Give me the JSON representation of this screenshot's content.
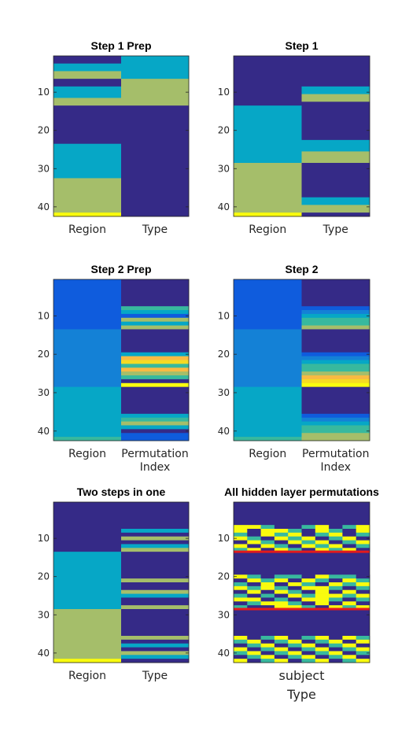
{
  "palette": {
    "navy": "#352a87",
    "blue": "#0f5cdd",
    "midblue": "#1481d6",
    "cyan": "#06a7c6",
    "teal": "#38b99e",
    "green": "#a5be6a",
    "orange": "#f8ba43",
    "yellow": "#f6da23",
    "brightyellow": "#f9fb0e",
    "red": "#e41a1c"
  },
  "chart_data": [
    {
      "type": "heatmap",
      "title": "Step 1 Prep",
      "columns": [
        "Region",
        "Type"
      ],
      "ylim": [
        1,
        42
      ],
      "yticks": [
        10,
        20,
        30,
        40
      ],
      "col_segments": [
        [
          [
            1,
            2,
            "navy"
          ],
          [
            3,
            4,
            "cyan"
          ],
          [
            5,
            6,
            "green"
          ],
          [
            7,
            8,
            "navy"
          ],
          [
            9,
            11,
            "cyan"
          ],
          [
            12,
            13,
            "green"
          ],
          [
            14,
            23,
            "navy"
          ],
          [
            24,
            32,
            "cyan"
          ],
          [
            33,
            41,
            "green"
          ],
          [
            42,
            42,
            "brightyellow"
          ]
        ],
        [
          [
            1,
            6,
            "cyan"
          ],
          [
            7,
            13,
            "green"
          ],
          [
            14,
            42,
            "navy"
          ]
        ]
      ]
    },
    {
      "type": "heatmap",
      "title": "Step 1",
      "columns": [
        "Region",
        "Type"
      ],
      "ylim": [
        1,
        42
      ],
      "yticks": [
        10,
        20,
        30,
        40
      ],
      "col_segments": [
        [
          [
            1,
            13,
            "navy"
          ],
          [
            14,
            28,
            "cyan"
          ],
          [
            29,
            41,
            "green"
          ],
          [
            42,
            42,
            "brightyellow"
          ]
        ],
        [
          [
            1,
            8,
            "navy"
          ],
          [
            9,
            10,
            "cyan"
          ],
          [
            11,
            12,
            "green"
          ],
          [
            13,
            22,
            "navy"
          ],
          [
            23,
            25,
            "cyan"
          ],
          [
            26,
            28,
            "green"
          ],
          [
            29,
            37,
            "navy"
          ],
          [
            38,
            39,
            "cyan"
          ],
          [
            40,
            41,
            "green"
          ],
          [
            42,
            42,
            "navy"
          ]
        ]
      ]
    },
    {
      "type": "heatmap",
      "title": "Step 2 Prep",
      "columns": [
        "Region",
        "Permutation Index"
      ],
      "ylim": [
        1,
        42
      ],
      "yticks": [
        10,
        20,
        30,
        40
      ],
      "col_segments": [
        [
          [
            1,
            13,
            "blue"
          ],
          [
            14,
            28,
            "midblue"
          ],
          [
            29,
            41,
            "cyan"
          ],
          [
            42,
            42,
            "teal"
          ]
        ],
        [
          [
            1,
            7,
            "navy"
          ],
          [
            8,
            8,
            "teal"
          ],
          [
            9,
            9,
            "cyan"
          ],
          [
            10,
            10,
            "blue"
          ],
          [
            11,
            11,
            "green"
          ],
          [
            12,
            12,
            "cyan"
          ],
          [
            13,
            13,
            "green"
          ],
          [
            14,
            19,
            "navy"
          ],
          [
            20,
            20,
            "cyan"
          ],
          [
            21,
            21,
            "orange"
          ],
          [
            22,
            22,
            "yellow"
          ],
          [
            23,
            23,
            "teal"
          ],
          [
            24,
            24,
            "orange"
          ],
          [
            25,
            25,
            "green"
          ],
          [
            26,
            26,
            "teal"
          ],
          [
            27,
            27,
            "navy"
          ],
          [
            28,
            28,
            "brightyellow"
          ],
          [
            29,
            35,
            "navy"
          ],
          [
            36,
            36,
            "cyan"
          ],
          [
            37,
            37,
            "teal"
          ],
          [
            38,
            38,
            "green"
          ],
          [
            39,
            39,
            "cyan"
          ],
          [
            40,
            40,
            "navy"
          ],
          [
            41,
            42,
            "blue"
          ]
        ]
      ]
    },
    {
      "type": "heatmap",
      "title": "Step 2",
      "columns": [
        "Region",
        "Permutation Index"
      ],
      "ylim": [
        1,
        42
      ],
      "yticks": [
        10,
        20,
        30,
        40
      ],
      "col_segments": [
        [
          [
            1,
            13,
            "blue"
          ],
          [
            14,
            28,
            "midblue"
          ],
          [
            29,
            41,
            "cyan"
          ],
          [
            42,
            42,
            "teal"
          ]
        ],
        [
          [
            1,
            7,
            "navy"
          ],
          [
            8,
            8,
            "blue"
          ],
          [
            9,
            9,
            "midblue"
          ],
          [
            10,
            10,
            "cyan"
          ],
          [
            11,
            11,
            "teal"
          ],
          [
            12,
            12,
            "teal"
          ],
          [
            13,
            13,
            "green"
          ],
          [
            14,
            19,
            "navy"
          ],
          [
            20,
            20,
            "blue"
          ],
          [
            21,
            21,
            "midblue"
          ],
          [
            22,
            22,
            "cyan"
          ],
          [
            23,
            23,
            "teal"
          ],
          [
            24,
            24,
            "teal"
          ],
          [
            25,
            25,
            "green"
          ],
          [
            26,
            26,
            "orange"
          ],
          [
            27,
            27,
            "yellow"
          ],
          [
            28,
            28,
            "brightyellow"
          ],
          [
            29,
            35,
            "navy"
          ],
          [
            36,
            36,
            "blue"
          ],
          [
            37,
            37,
            "midblue"
          ],
          [
            38,
            38,
            "cyan"
          ],
          [
            39,
            39,
            "teal"
          ],
          [
            40,
            40,
            "teal"
          ],
          [
            41,
            41,
            "green"
          ],
          [
            42,
            42,
            "green"
          ]
        ]
      ]
    },
    {
      "type": "heatmap",
      "title": "Two steps in one",
      "columns": [
        "Region",
        "Type"
      ],
      "ylim": [
        1,
        42
      ],
      "yticks": [
        10,
        20,
        30,
        40
      ],
      "col_segments": [
        [
          [
            1,
            13,
            "navy"
          ],
          [
            14,
            28,
            "cyan"
          ],
          [
            29,
            41,
            "green"
          ],
          [
            42,
            42,
            "brightyellow"
          ]
        ],
        [
          [
            1,
            7,
            "navy"
          ],
          [
            8,
            8,
            "cyan"
          ],
          [
            9,
            9,
            "navy"
          ],
          [
            10,
            10,
            "green"
          ],
          [
            11,
            11,
            "navy"
          ],
          [
            12,
            12,
            "cyan"
          ],
          [
            13,
            13,
            "green"
          ],
          [
            14,
            20,
            "navy"
          ],
          [
            21,
            21,
            "green"
          ],
          [
            22,
            23,
            "navy"
          ],
          [
            24,
            24,
            "green"
          ],
          [
            25,
            25,
            "cyan"
          ],
          [
            26,
            27,
            "navy"
          ],
          [
            28,
            28,
            "green"
          ],
          [
            29,
            35,
            "navy"
          ],
          [
            36,
            36,
            "green"
          ],
          [
            37,
            37,
            "navy"
          ],
          [
            38,
            38,
            "cyan"
          ],
          [
            39,
            39,
            "navy"
          ],
          [
            40,
            40,
            "green"
          ],
          [
            41,
            41,
            "cyan"
          ],
          [
            42,
            42,
            "navy"
          ]
        ]
      ]
    },
    {
      "type": "heatmap",
      "title": "All hidden layer permutations",
      "columns": [],
      "xlabel": "subject",
      "xlabel2": "Type",
      "ylim": [
        1,
        42
      ],
      "yticks": [
        10,
        20,
        30,
        40
      ],
      "ncols": 10,
      "rows": {
        "7": [
          "brightyellow",
          "brightyellow",
          "teal",
          "navy",
          "navy",
          "teal",
          "brightyellow",
          "navy",
          "teal",
          "brightyellow"
        ],
        "8": [
          "brightyellow",
          "navy",
          "brightyellow",
          "brightyellow",
          "teal",
          "navy",
          "brightyellow",
          "teal",
          "navy",
          "brightyellow"
        ],
        "9": [
          "teal",
          "navy",
          "brightyellow",
          "teal",
          "brightyellow",
          "navy",
          "teal",
          "brightyellow",
          "navy",
          "teal"
        ],
        "10": [
          "brightyellow",
          "teal",
          "navy",
          "brightyellow",
          "teal",
          "brightyellow",
          "navy",
          "teal",
          "brightyellow",
          "navy"
        ],
        "11": [
          "navy",
          "brightyellow",
          "teal",
          "navy",
          "brightyellow",
          "teal",
          "brightyellow",
          "navy",
          "teal",
          "brightyellow"
        ],
        "12": [
          "brightyellow",
          "navy",
          "brightyellow",
          "teal",
          "navy",
          "brightyellow",
          "teal",
          "brightyellow",
          "navy",
          "teal"
        ],
        "13": [
          "teal",
          "brightyellow",
          "navy",
          "brightyellow",
          "teal",
          "navy",
          "brightyellow",
          "teal",
          "brightyellow",
          "navy"
        ],
        "20": [
          "brightyellow",
          "teal",
          "navy",
          "teal",
          "teal",
          "navy",
          "brightyellow",
          "teal",
          "teal",
          "navy"
        ],
        "21": [
          "navy",
          "brightyellow",
          "teal",
          "brightyellow",
          "navy",
          "brightyellow",
          "teal",
          "navy",
          "brightyellow",
          "teal"
        ],
        "22": [
          "teal",
          "navy",
          "brightyellow",
          "navy",
          "brightyellow",
          "teal",
          "navy",
          "brightyellow",
          "teal",
          "brightyellow"
        ],
        "23": [
          "brightyellow",
          "teal",
          "brightyellow",
          "teal",
          "navy",
          "brightyellow",
          "brightyellow",
          "teal",
          "navy",
          "teal"
        ],
        "24": [
          "navy",
          "brightyellow",
          "navy",
          "brightyellow",
          "teal",
          "navy",
          "brightyellow",
          "navy",
          "brightyellow",
          "navy"
        ],
        "25": [
          "teal",
          "navy",
          "teal",
          "navy",
          "brightyellow",
          "teal",
          "brightyellow",
          "brightyellow",
          "teal",
          "brightyellow"
        ],
        "26": [
          "brightyellow",
          "brightyellow",
          "navy",
          "teal",
          "navy",
          "brightyellow",
          "brightyellow",
          "teal",
          "navy",
          "teal"
        ],
        "27": [
          "navy",
          "teal",
          "brightyellow",
          "brightyellow",
          "teal",
          "navy",
          "brightyellow",
          "navy",
          "brightyellow",
          "navy"
        ],
        "28": [
          "teal",
          "navy",
          "navy",
          "brightyellow",
          "brightyellow",
          "teal",
          "navy",
          "brightyellow",
          "teal",
          "brightyellow"
        ],
        "36": [
          "brightyellow",
          "navy",
          "teal",
          "brightyellow",
          "navy",
          "teal",
          "brightyellow",
          "navy",
          "brightyellow",
          "teal"
        ],
        "37": [
          "teal",
          "brightyellow",
          "navy",
          "teal",
          "brightyellow",
          "navy",
          "teal",
          "brightyellow",
          "navy",
          "brightyellow"
        ],
        "38": [
          "navy",
          "teal",
          "brightyellow",
          "navy",
          "teal",
          "brightyellow",
          "navy",
          "teal",
          "brightyellow",
          "navy"
        ],
        "39": [
          "brightyellow",
          "navy",
          "teal",
          "brightyellow",
          "navy",
          "teal",
          "brightyellow",
          "navy",
          "teal",
          "brightyellow"
        ],
        "40": [
          "teal",
          "brightyellow",
          "navy",
          "teal",
          "brightyellow",
          "navy",
          "teal",
          "brightyellow",
          "navy",
          "teal"
        ],
        "41": [
          "navy",
          "teal",
          "brightyellow",
          "navy",
          "teal",
          "brightyellow",
          "navy",
          "teal",
          "brightyellow",
          "navy"
        ],
        "42": [
          "brightyellow",
          "navy",
          "teal",
          "brightyellow",
          "navy",
          "teal",
          "brightyellow",
          "navy",
          "teal",
          "brightyellow"
        ]
      },
      "hlines": [
        14,
        29
      ],
      "hline_color": "red"
    }
  ]
}
